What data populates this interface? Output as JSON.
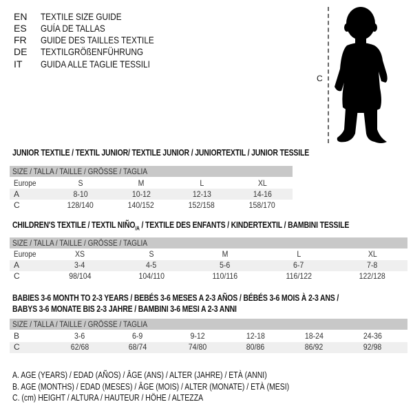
{
  "languages": [
    {
      "code": "EN",
      "title": "TEXTILE SIZE GUIDE"
    },
    {
      "code": "ES",
      "title": "GUÍA DE TALLAS"
    },
    {
      "code": "FR",
      "title": "GUIDE DES TAILLES TEXTILE"
    },
    {
      "code": "DE",
      "title": "TEXTILGRÖßENFÜHRUNG"
    },
    {
      "code": "IT",
      "title": "GUIDA ALLE TAGLIE TESSILI"
    }
  ],
  "figure": {
    "measure_label": "C",
    "icon": "baby-silhouette"
  },
  "size_header": "SIZE / TALLA / TAILLE / GRÖSSE / TAGLIA",
  "junior": {
    "title": "JUNIOR TEXTILE / TEXTIL JUNIOR/ TEXTILE JUNIOR / JUNIORTEXTIL / JUNIOR TESSILE",
    "rows": [
      {
        "label": "Europe",
        "values": [
          "S",
          "M",
          "L",
          "XL"
        ]
      },
      {
        "label": "A",
        "values": [
          "8-10",
          "10-12",
          "12-13",
          "14-16"
        ]
      },
      {
        "label": "C",
        "values": [
          "128/140",
          "140/152",
          "152/158",
          "158/170"
        ]
      }
    ]
  },
  "children": {
    "title_main": "CHILDREN'S TEXTILE / TEXTIL NIÑO",
    "title_sub": "/A",
    "title_rest": " / TEXTILE DES ENFANTS / KINDERTEXTIL / BAMBINI TESSILE",
    "rows": [
      {
        "label": "Europe",
        "values": [
          "XS",
          "S",
          "M",
          "L",
          "XL"
        ]
      },
      {
        "label": "A",
        "values": [
          "3-4",
          "4-5",
          "5-6",
          "6-7",
          "7-8"
        ]
      },
      {
        "label": "C",
        "values": [
          "98/104",
          "104/110",
          "110/116",
          "116/122",
          "122/128"
        ]
      }
    ]
  },
  "babies": {
    "title_line1": "BABIES 3-6 MONTH TO 2-3 YEARS / BEBÉS 3-6 MESES A 2-3 AÑOS / BÉBÉS 3-6 MOIS À 2-3 ANS /",
    "title_line2": "BABYS 3-6 MONATE BIS 2-3 JAHRE / BAMBINI 3-6 MESI A 2-3 ANNI",
    "rows": [
      {
        "label": "B",
        "values": [
          "3-6",
          "6-9",
          "9-12",
          "12-18",
          "18-24",
          "24-36"
        ]
      },
      {
        "label": "C",
        "values": [
          "62/68",
          "68/74",
          "74/80",
          "80/86",
          "86/92",
          "92/98"
        ]
      }
    ]
  },
  "legend": [
    "A. AGE (YEARS) / EDAD (AÑOS) / ÂGE (ANS) / ALTER (JAHRE) / ETÀ (ANNI)",
    "B. AGE (MONTHS) / EDAD (MESES) / ÂGE (MOIS) / ALTER (MONATE) / ETÀ (MESI)",
    "C. (cm) HEIGHT / ALTURA / HAUTEUR / HÖHE / ALTEZZA"
  ],
  "colors": {
    "header_bar": "#c8c8c8",
    "stripe": "#efefef"
  }
}
